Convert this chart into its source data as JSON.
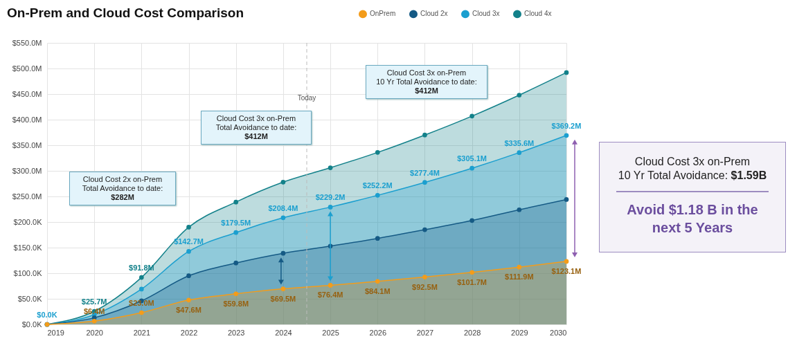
{
  "chart_data": {
    "type": "area",
    "title": "On-Prem and Cloud Cost Comparison",
    "x": [
      2019,
      2020,
      2021,
      2022,
      2023,
      2024,
      2025,
      2026,
      2027,
      2028,
      2029,
      2030
    ],
    "series": [
      {
        "name": "OnPrem",
        "color": "#f39c1a",
        "values": [
          0,
          6.4,
          23.0,
          47.6,
          59.8,
          69.5,
          76.4,
          84.1,
          92.5,
          101.7,
          111.9,
          123.1
        ],
        "value_labels": [
          null,
          "$6.4M",
          "$23.0M",
          "$47.6M",
          "$59.8M",
          "$69.5M",
          "$76.4M",
          "$84.1M",
          "$92.5M",
          "$101.7M",
          "$111.9M",
          "$123.1M"
        ]
      },
      {
        "name": "Cloud 2x",
        "color": "#155a85",
        "values": [
          0,
          13,
          46,
          95,
          120,
          139,
          153,
          168,
          185,
          203,
          224,
          244
        ]
      },
      {
        "name": "Cloud 3x",
        "color": "#1b9fcf",
        "values": [
          0,
          19,
          69,
          142.7,
          179.5,
          208.4,
          229.2,
          252.2,
          277.4,
          305.1,
          335.6,
          369.2
        ],
        "value_labels": [
          "$0.0K",
          null,
          null,
          "$142.7M",
          "$179.5M",
          "$208.4M",
          "$229.2M",
          "$252.2M",
          "$277.4M",
          "$305.1M",
          "$335.6M",
          "$369.2M"
        ]
      },
      {
        "name": "Cloud 4x",
        "color": "#13818a",
        "values": [
          0,
          25.7,
          91.8,
          190,
          239,
          278,
          306,
          336,
          370,
          407,
          448,
          492
        ],
        "value_labels": [
          null,
          "$25.7M",
          "$91.8M",
          null,
          null,
          null,
          null,
          null,
          null,
          null,
          null,
          null
        ]
      }
    ],
    "xlim": [
      2019,
      2030
    ],
    "xticks": [
      2019,
      2020,
      2021,
      2022,
      2023,
      2024,
      2025,
      2026,
      2027,
      2028,
      2029,
      2030
    ],
    "ylim": [
      0,
      550
    ],
    "yticks": [
      {
        "value": 0,
        "label": "$0.0K"
      },
      {
        "value": 50,
        "label": "$50.0K"
      },
      {
        "value": 100,
        "label": "$100.0K"
      },
      {
        "value": 150,
        "label": "$150.0K"
      },
      {
        "value": 200,
        "label": "$200.0K"
      },
      {
        "value": 250,
        "label": "$250.0M"
      },
      {
        "value": 300,
        "label": "$300.0M"
      },
      {
        "value": 350,
        "label": "$350.0M"
      },
      {
        "value": 400,
        "label": "$400.0M"
      },
      {
        "value": 450,
        "label": "$450.0M"
      },
      {
        "value": 500,
        "label": "$500.0M"
      },
      {
        "value": 550,
        "label": "$550.0M"
      }
    ],
    "grid": true,
    "legend": "top",
    "marker": "circle",
    "ref_lines": [
      {
        "axis": "x",
        "value": 2024.5,
        "label": "Today",
        "line_style": "dashed",
        "color": "#bbbbbb"
      }
    ],
    "annotations": [
      "Cloud Cost 2x on-Prem\nTotal Avoidance to date:\n$282M",
      "Cloud Cost 3x on-Prem\nTotal Avoidance to date:\n$412M",
      "Cloud Cost 3x on-Prem\n10 Yr Total Avoidance to date:\n$412M",
      "Cloud Cost 3x on-Prem\n10 Yr Total Avoidance: $1.59B",
      "Avoid $1.18 B in the next 5 Years"
    ]
  }
}
